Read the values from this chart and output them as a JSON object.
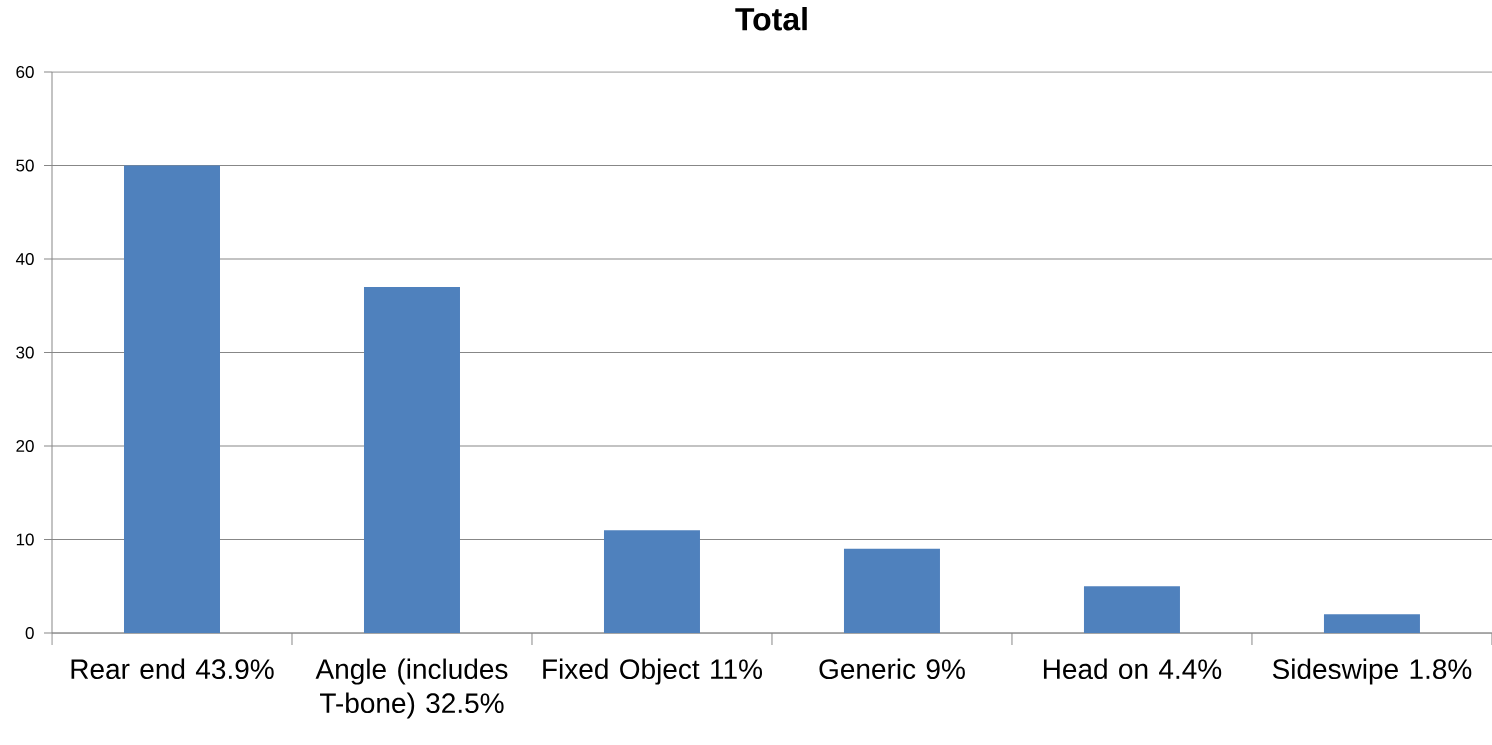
{
  "chart_data": {
    "type": "bar",
    "title": "Total",
    "categories": [
      "Rear end 43.9%",
      "Angle (includes T-bone) 32.5%",
      "Fixed Object 11%",
      "Generic 9%",
      "Head on 4.4%",
      "Sideswipe 1.8%"
    ],
    "values": [
      50,
      37,
      11,
      9,
      5,
      2
    ],
    "color": "#4f81bd",
    "ylim": [
      0,
      60
    ],
    "yticks": [
      0,
      10,
      20,
      30,
      40,
      50,
      60
    ],
    "grid": "y"
  }
}
